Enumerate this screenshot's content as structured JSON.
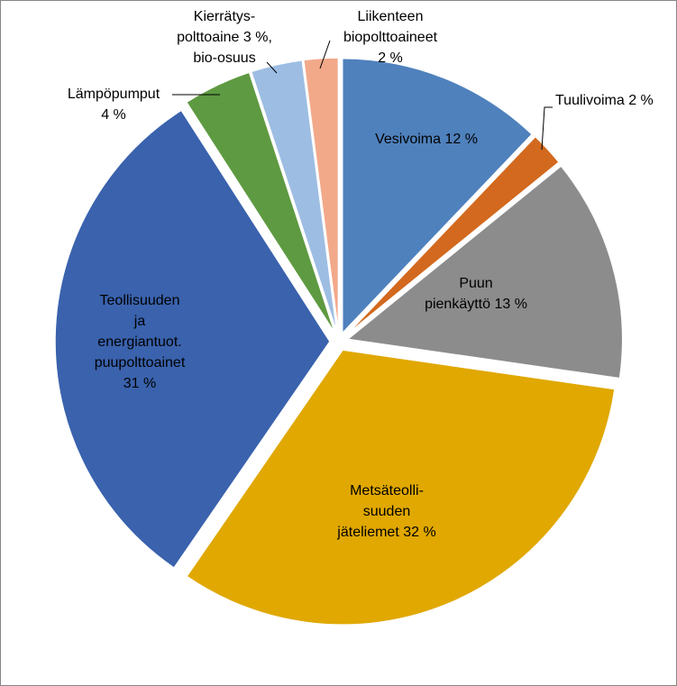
{
  "chart_data": {
    "type": "pie",
    "title": "",
    "slices": [
      {
        "label": [
          "Vesivoima  12 %"
        ],
        "value": 12,
        "color": "#4f81bd"
      },
      {
        "label": [
          "Tuulivoima 2 %"
        ],
        "value": 2,
        "color": "#d2691e"
      },
      {
        "label": [
          "Puun",
          "pienkäyttö 13 %"
        ],
        "value": 13,
        "color": "#8c8c8c"
      },
      {
        "label": [
          "Metsäteolli-",
          "suuden",
          "jäteliemet 32 %"
        ],
        "value": 32,
        "color": "#e0a800"
      },
      {
        "label": [
          "Teollisuuden",
          "ja",
          "energiantuot.",
          "puupolttoainet",
          "31 %"
        ],
        "value": 31,
        "color": "#3a62ad"
      },
      {
        "label": [
          "Lämpöpumput",
          "4 %"
        ],
        "value": 4,
        "color": "#5e9a41"
      },
      {
        "label": [
          "Kierrätys-",
          "polttoaine  3 %,",
          "bio-osuus"
        ],
        "value": 3,
        "color": "#9dbde3"
      },
      {
        "label": [
          "Liikenteen",
          "biopolttoaineet",
          "2 %"
        ],
        "value": 2,
        "color": "#f2a98a"
      }
    ]
  }
}
